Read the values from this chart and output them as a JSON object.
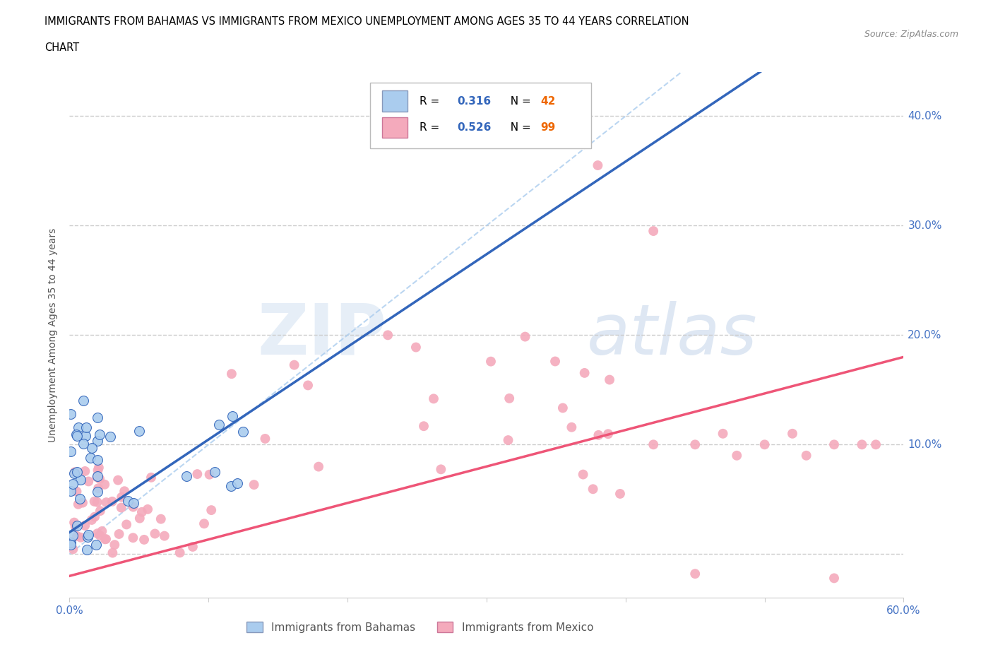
{
  "title_line1": "IMMIGRANTS FROM BAHAMAS VS IMMIGRANTS FROM MEXICO UNEMPLOYMENT AMONG AGES 35 TO 44 YEARS CORRELATION",
  "title_line2": "CHART",
  "source": "Source: ZipAtlas.com",
  "ylabel": "Unemployment Among Ages 35 to 44 years",
  "xlim": [
    0.0,
    0.6
  ],
  "ylim": [
    -0.04,
    0.44
  ],
  "xticks": [
    0.0,
    0.1,
    0.2,
    0.3,
    0.4,
    0.5,
    0.6
  ],
  "xtick_labels": [
    "0.0%",
    "",
    "",
    "",
    "",
    "",
    "60.0%"
  ],
  "yticks": [
    0.0,
    0.1,
    0.2,
    0.3,
    0.4
  ],
  "ytick_labels": [
    "",
    "10.0%",
    "20.0%",
    "30.0%",
    "40.0%"
  ],
  "grid_color": "#cccccc",
  "background_color": "#ffffff",
  "bahamas_color": "#aaccee",
  "mexico_color": "#f4aabc",
  "trendline_bahamas_color": "#3366bb",
  "trendline_mexico_color": "#ee5577",
  "diagonal_color": "#aaccee",
  "R_bahamas": 0.316,
  "N_bahamas": 42,
  "R_mexico": 0.526,
  "N_mexico": 99,
  "legend_R_color": "#3366bb",
  "legend_N_color": "#ee6600",
  "watermark_zip": "ZIP",
  "watermark_atlas": "atlas",
  "watermark_color_zip": "#d8e8f4",
  "watermark_color_atlas": "#c8d8e8"
}
